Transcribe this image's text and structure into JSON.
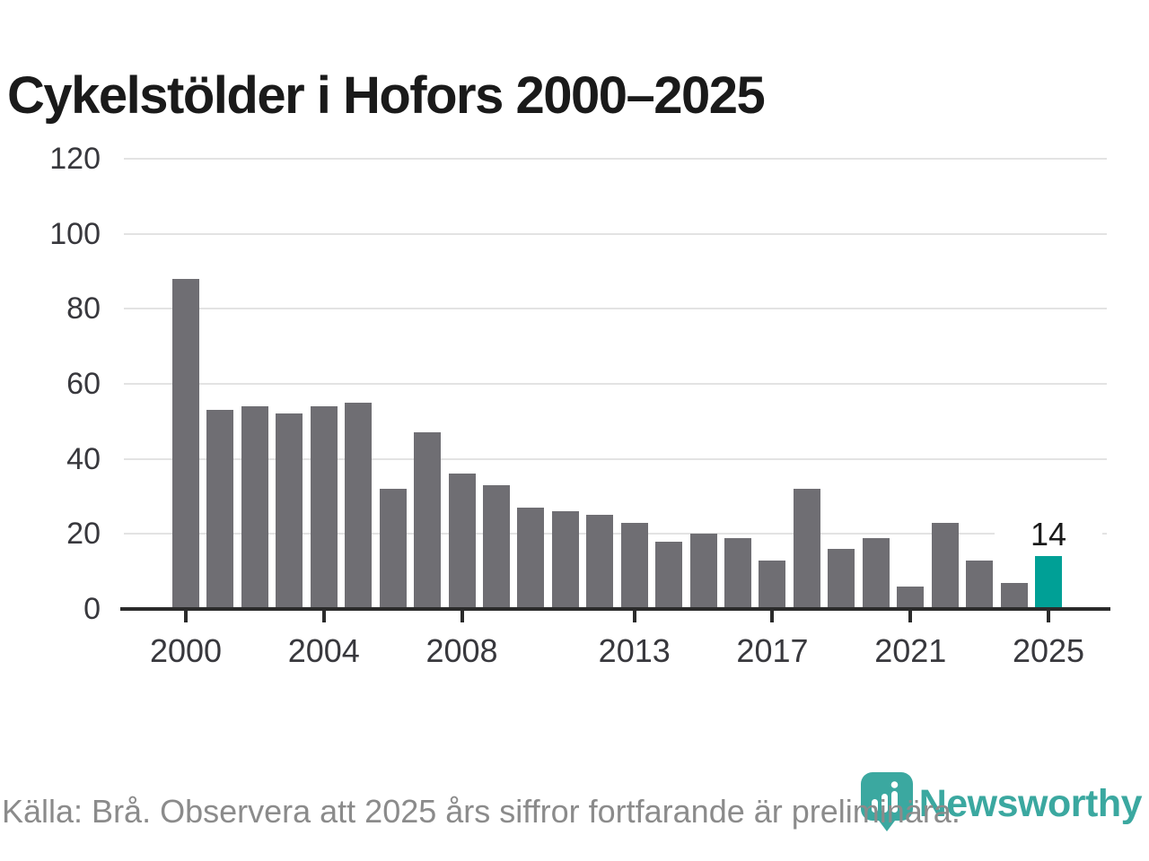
{
  "title": "Cykelstölder i Hofors 2000–2025",
  "chart_data": {
    "type": "bar",
    "title": "Cykelstölder i Hofors 2000–2025",
    "categories": [
      "2000",
      "2001",
      "2002",
      "2003",
      "2004",
      "2005",
      "2006",
      "2007",
      "2008",
      "2009",
      "2010",
      "2011",
      "2012",
      "2013",
      "2014",
      "2015",
      "2016",
      "2017",
      "2018",
      "2019",
      "2020",
      "2021",
      "2022",
      "2023",
      "2024",
      "2025"
    ],
    "values": [
      88,
      53,
      54,
      52,
      54,
      55,
      32,
      47,
      36,
      33,
      27,
      26,
      25,
      23,
      18,
      20,
      19,
      13,
      32,
      16,
      19,
      6,
      23,
      13,
      7,
      14
    ],
    "xlabel": "",
    "ylabel": "",
    "ylim": [
      0,
      120
    ],
    "y_ticks": [
      0,
      20,
      40,
      60,
      80,
      100,
      120
    ],
    "x_tick_labels": [
      "2000",
      "2004",
      "2008",
      "2013",
      "2017",
      "2021",
      "2025"
    ],
    "grid": true,
    "legend": null,
    "highlight": {
      "category": "2025",
      "value_label": "14"
    },
    "colors": {
      "bar": "#6f6e73",
      "highlight_bar": "#00a096",
      "gridline": "#e3e3e3",
      "axis": "#2b2b2b",
      "tick_text": "#38383d",
      "title_text": "#1a1a1a"
    }
  },
  "footer": {
    "source_note": "Källa: Brå. Observera att 2025 års siffror fortfarande är preliminära.",
    "text_color": "#8b8b8b"
  },
  "branding": {
    "logo_label": "Newsworthy",
    "logo_icon": "newsworthy-pin-barchart-icon",
    "logo_color": "#3ba8a0"
  }
}
